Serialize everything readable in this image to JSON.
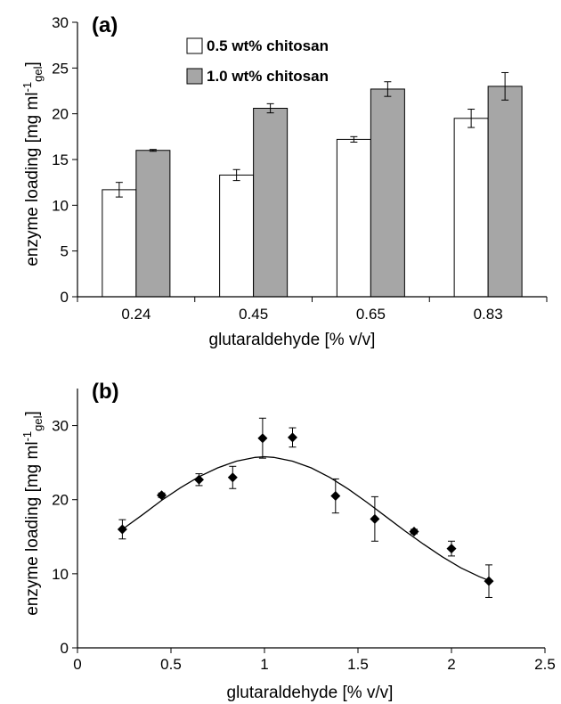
{
  "chart_data": [
    {
      "type": "bar",
      "panel_label": "(a)",
      "xlabel": "glutaraldehyde [% v/v]",
      "ylabel": {
        "main": "enzyme loading [mg ml",
        "sup": "-1",
        "sub": "gel",
        "close": "]"
      },
      "categories": [
        "0.24",
        "0.45",
        "0.65",
        "0.83"
      ],
      "ylim": [
        0,
        30
      ],
      "yticks": [
        0,
        5,
        10,
        15,
        20,
        25,
        30
      ],
      "legend_position": "top",
      "grid": false,
      "series": [
        {
          "name": "0.5 wt% chitosan",
          "color": "#ffffff",
          "values": [
            11.7,
            13.3,
            17.2,
            19.5
          ],
          "errors": [
            0.8,
            0.6,
            0.3,
            1.0
          ]
        },
        {
          "name": "1.0 wt% chitosan",
          "color": "#a6a6a6",
          "values": [
            16.0,
            20.6,
            22.7,
            23.0
          ],
          "errors": [
            0.1,
            0.5,
            0.8,
            1.5
          ]
        }
      ]
    },
    {
      "type": "scatter",
      "panel_label": "(b)",
      "xlabel": "glutaraldehyde [% v/v]",
      "ylabel": {
        "main": "enzyme loading [mg ml",
        "sup": "-1",
        "sub": "gel",
        "close": "]"
      },
      "xlim": [
        0,
        2.5
      ],
      "ylim": [
        0,
        35
      ],
      "xticks": [
        "0",
        "0.5",
        "1",
        "1.5",
        "2",
        "2.5"
      ],
      "yticks": [
        "0",
        "10",
        "20",
        "30"
      ],
      "grid": false,
      "points": [
        {
          "x": 0.24,
          "y": 16.0,
          "err": 1.3
        },
        {
          "x": 0.45,
          "y": 20.6,
          "err": 0.3
        },
        {
          "x": 0.65,
          "y": 22.7,
          "err": 0.8
        },
        {
          "x": 0.83,
          "y": 23.0,
          "err": 1.5
        },
        {
          "x": 0.99,
          "y": 28.3,
          "err": 2.7
        },
        {
          "x": 1.15,
          "y": 28.4,
          "err": 1.3
        },
        {
          "x": 1.38,
          "y": 20.5,
          "err": 2.3
        },
        {
          "x": 1.59,
          "y": 17.4,
          "err": 3.0
        },
        {
          "x": 1.8,
          "y": 15.7,
          "err": 0.3
        },
        {
          "x": 2.0,
          "y": 13.4,
          "err": 1.0
        },
        {
          "x": 2.2,
          "y": 9.0,
          "err": 2.2
        }
      ],
      "fit_curve": {
        "x": [
          0.24,
          0.35,
          0.45,
          0.55,
          0.65,
          0.75,
          0.85,
          0.95,
          1.0,
          1.05,
          1.15,
          1.25,
          1.35,
          1.45,
          1.55,
          1.65,
          1.75,
          1.85,
          1.95,
          2.05,
          2.15,
          2.2
        ],
        "y": [
          16.0,
          18.0,
          19.9,
          21.6,
          23.1,
          24.3,
          25.2,
          25.7,
          25.8,
          25.7,
          25.2,
          24.3,
          23.0,
          21.4,
          19.6,
          17.7,
          15.8,
          14.0,
          12.3,
          10.8,
          9.6,
          9.1
        ]
      }
    }
  ]
}
